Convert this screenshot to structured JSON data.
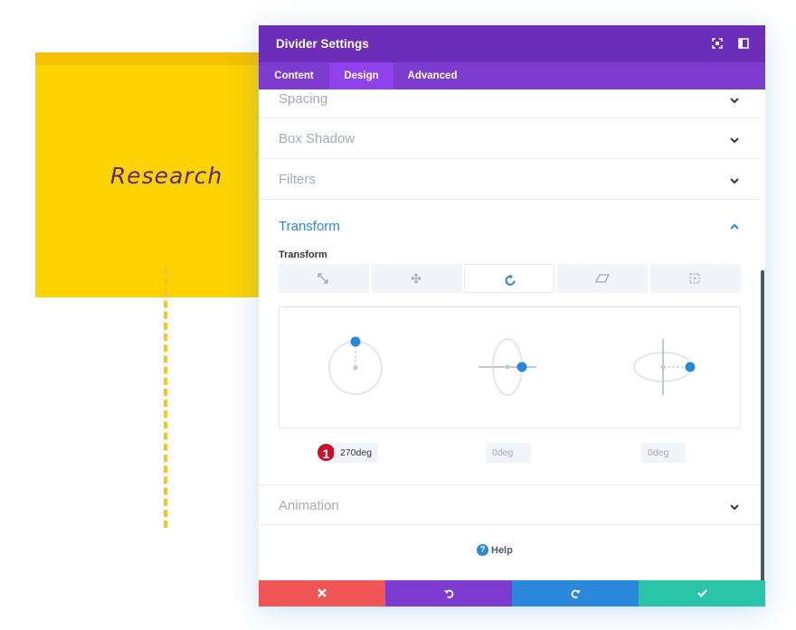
{
  "background": {
    "note_text": "Research",
    "colors": {
      "note": "#fcd200",
      "note_top": "#f7bf00",
      "note_text": "#5b2a83",
      "dashed_line": "#f3c623"
    }
  },
  "modal": {
    "title": "Divider Settings",
    "header_icons": [
      "fullscreen-icon",
      "sidebar-toggle-icon"
    ],
    "tabs": [
      {
        "label": "Content",
        "active": false
      },
      {
        "label": "Design",
        "active": true
      },
      {
        "label": "Advanced",
        "active": false
      }
    ],
    "sections": {
      "spacing": "Spacing",
      "box_shadow": "Box Shadow",
      "filters": "Filters",
      "transform": "Transform",
      "animation": "Animation"
    },
    "transform": {
      "sub_label": "Transform",
      "buttons": [
        "scale-icon",
        "translate-icon",
        "rotate-icon",
        "skew-icon",
        "origin-icon"
      ],
      "active_button": "rotate-icon",
      "values": {
        "rotate_z": "270deg",
        "rotate_x": "0deg",
        "rotate_y": "0deg"
      },
      "step_badge": "1"
    },
    "help_label": "Help",
    "footer": [
      "close-icon",
      "undo-icon",
      "redo-icon",
      "check-icon"
    ],
    "colors": {
      "header": "#6c2eb9",
      "tabs": "#7e3bd0",
      "tab_active": "#8f42ec",
      "accent": "#2b87da",
      "cancel": "#ef5555",
      "undo": "#7e3bd0",
      "redo": "#2b87da",
      "save": "#29c4a9",
      "badge": "#c8102e"
    }
  }
}
